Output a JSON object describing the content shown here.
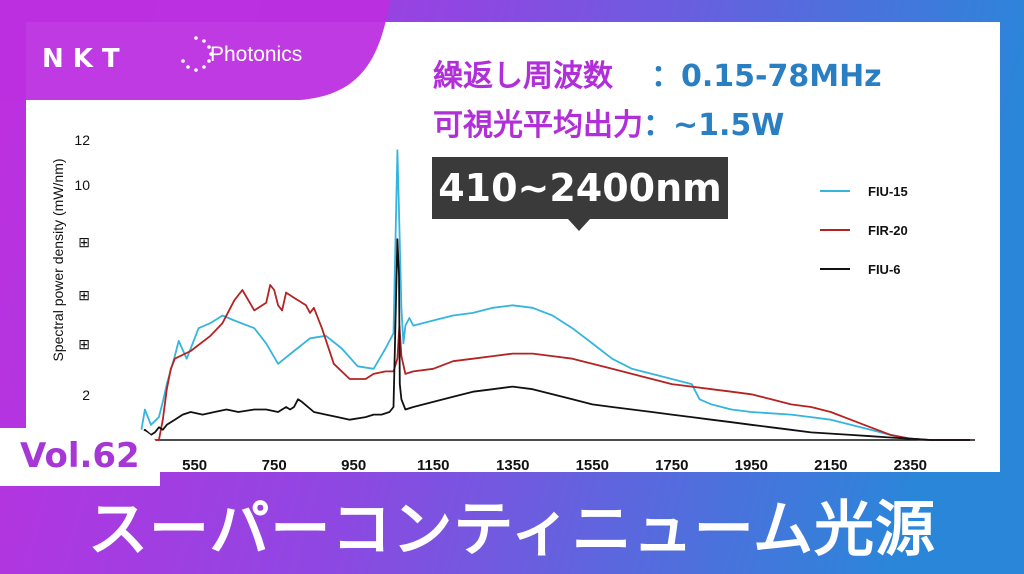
{
  "brand": {
    "name": "NKT",
    "sub": "Photonics"
  },
  "specs": {
    "line1_label": "繰返し周波数",
    "line1_value": "：0.15-78MHz",
    "line2_label": "可視光平均出力",
    "line2_value": "：~1.5W"
  },
  "callout": "410~2400nm",
  "vol_label": "Vol.62",
  "title": "スーパーコンティニューム光源",
  "colors": {
    "spec_label": "#b02fd8",
    "spec_value": "#2a7fc3",
    "fiu15": "#35b5dd",
    "fir20": "#b42323",
    "fiu6": "#111111"
  },
  "chart_data": {
    "type": "line",
    "ylabel": "Spectral power density (mW/nm)",
    "xlabel": "",
    "xlim": [
      400,
      2500
    ],
    "ylim": [
      0,
      12
    ],
    "y_ticks": [
      "12",
      "10",
      "⊞",
      "⊞",
      "⊞",
      "2"
    ],
    "x_ticks": [
      "550",
      "750",
      "950",
      "1150",
      "1350",
      "1550",
      "1750",
      "1950",
      "2150",
      "2350"
    ],
    "x_tick_values": [
      550,
      750,
      950,
      1150,
      1350,
      1550,
      1750,
      1950,
      2150,
      2350
    ],
    "legend_position": "top-right",
    "series": [
      {
        "name": "FIU-15",
        "x": [
          400,
          415,
          425,
          440,
          460,
          470,
          480,
          500,
          510,
          530,
          560,
          590,
          620,
          650,
          700,
          730,
          760,
          800,
          840,
          880,
          920,
          960,
          1000,
          1030,
          1050,
          1060,
          1064,
          1070,
          1075,
          1080,
          1090,
          1100,
          1150,
          1200,
          1250,
          1300,
          1350,
          1400,
          1450,
          1500,
          1550,
          1600,
          1650,
          1700,
          1750,
          1800,
          1820,
          1850,
          1900,
          1950,
          2000,
          2050,
          2100,
          2150,
          2200,
          2250,
          2300,
          2350,
          2400,
          2450,
          2500
        ],
        "y": [
          0,
          0.3,
          1.2,
          0.6,
          0.9,
          1.5,
          2.2,
          3.3,
          3.9,
          3.2,
          4.4,
          4.6,
          4.9,
          4.7,
          4.4,
          3.8,
          3.0,
          3.5,
          4.0,
          4.1,
          3.6,
          2.9,
          2.8,
          3.6,
          4.2,
          11.4,
          9.0,
          5.2,
          3.8,
          4.5,
          4.8,
          4.5,
          4.7,
          4.9,
          5.0,
          5.2,
          5.3,
          5.2,
          4.9,
          4.4,
          3.8,
          3.2,
          2.8,
          2.6,
          2.4,
          2.2,
          1.6,
          1.4,
          1.2,
          1.1,
          1.05,
          1.0,
          0.9,
          0.8,
          0.6,
          0.4,
          0.2,
          0.05,
          0,
          0,
          0
        ]
      },
      {
        "name": "FIR-20",
        "x": [
          400,
          460,
          470,
          480,
          490,
          500,
          540,
          590,
          620,
          650,
          670,
          700,
          730,
          740,
          750,
          760,
          770,
          780,
          800,
          830,
          840,
          850,
          870,
          900,
          940,
          980,
          1000,
          1030,
          1050,
          1060,
          1065,
          1070,
          1080,
          1100,
          1150,
          1200,
          1250,
          1300,
          1350,
          1400,
          1450,
          1500,
          1550,
          1600,
          1650,
          1700,
          1750,
          1800,
          1850,
          1900,
          1950,
          2000,
          2050,
          2100,
          2150,
          2200,
          2250,
          2300,
          2350,
          2400,
          2450,
          2500
        ],
        "y": [
          0,
          0,
          0.8,
          2.0,
          2.8,
          3.2,
          3.5,
          4.1,
          4.6,
          5.5,
          5.9,
          5.1,
          5.4,
          6.1,
          5.9,
          5.3,
          5.1,
          5.8,
          5.6,
          5.3,
          5.0,
          5.2,
          4.4,
          3.0,
          2.4,
          2.4,
          2.6,
          2.7,
          2.7,
          3.2,
          4.5,
          3.3,
          2.6,
          2.7,
          2.8,
          3.1,
          3.2,
          3.3,
          3.4,
          3.4,
          3.3,
          3.2,
          3.0,
          2.8,
          2.6,
          2.4,
          2.2,
          2.1,
          2.0,
          1.9,
          1.8,
          1.6,
          1.4,
          1.3,
          1.1,
          0.8,
          0.5,
          0.2,
          0.05,
          0,
          0,
          0
        ]
      },
      {
        "name": "FIU-6",
        "x": [
          400,
          410,
          425,
          440,
          450,
          460,
          470,
          480,
          500,
          520,
          540,
          570,
          600,
          630,
          660,
          700,
          730,
          760,
          780,
          790,
          800,
          810,
          820,
          850,
          880,
          910,
          940,
          980,
          1000,
          1020,
          1040,
          1050,
          1060,
          1064,
          1066,
          1070,
          1080,
          1100,
          1150,
          1200,
          1250,
          1300,
          1350,
          1400,
          1450,
          1500,
          1550,
          1600,
          1650,
          1700,
          1750,
          1800,
          1850,
          1900,
          1950,
          2000,
          2050,
          2100,
          2150,
          2200,
          2250,
          2300,
          2350,
          2400,
          2450,
          2500
        ],
        "y": [
          0,
          0.05,
          0.4,
          0.2,
          0.3,
          0.5,
          0.4,
          0.6,
          0.8,
          1.0,
          1.1,
          1.0,
          1.1,
          1.2,
          1.1,
          1.2,
          1.2,
          1.1,
          1.3,
          1.2,
          1.3,
          1.6,
          1.5,
          1.1,
          1.0,
          0.9,
          0.8,
          0.9,
          1.0,
          1.0,
          1.1,
          1.3,
          7.9,
          6.5,
          2.2,
          1.6,
          1.2,
          1.3,
          1.5,
          1.7,
          1.9,
          2.0,
          2.1,
          2.0,
          1.8,
          1.6,
          1.4,
          1.3,
          1.2,
          1.1,
          1.0,
          0.9,
          0.8,
          0.7,
          0.6,
          0.5,
          0.4,
          0.3,
          0.25,
          0.2,
          0.15,
          0.1,
          0.05,
          0,
          0,
          0
        ]
      }
    ]
  }
}
